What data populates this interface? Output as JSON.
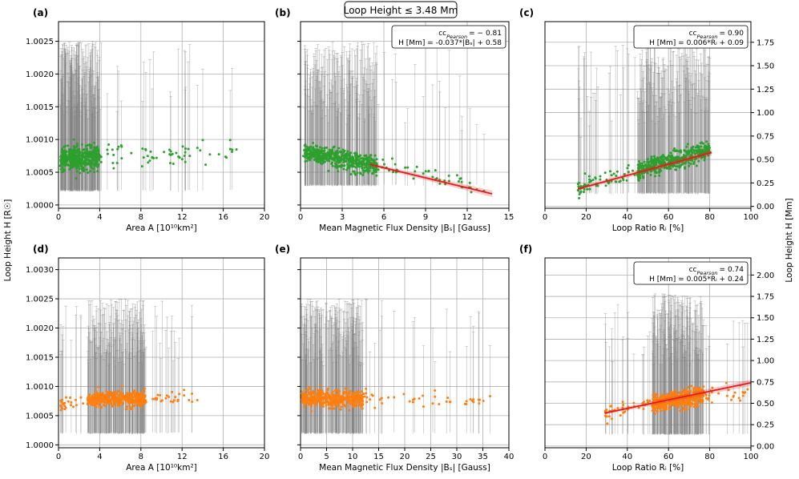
{
  "title": "Loop Height ≤ 3.48 Mm",
  "left_ylabel": "Loop Height H [R☉]",
  "right_ylabel": "Loop Height H [Mm]",
  "colors": {
    "green": "#2ca02c",
    "orange": "#ff7f0e",
    "fit": "#e41a1c",
    "error": "#7f7f7f"
  },
  "chart_data": [
    {
      "id": "a",
      "letter": "(a)",
      "type": "scatter",
      "color": "green",
      "xlabel": "Area A [10¹⁰km²]",
      "xlim": [
        0,
        20
      ],
      "xticks": [
        0,
        4,
        8,
        12,
        16,
        20
      ],
      "xtick_labels": [
        "0",
        "4",
        "8",
        "12",
        "16",
        "20"
      ],
      "ylim": [
        0.99995,
        1.0028
      ],
      "yticks": [
        1.0,
        1.0005,
        1.001,
        1.0015,
        1.002,
        1.0025
      ],
      "ytick_labels": [
        "1.0000",
        "1.0005",
        "1.0010",
        "1.0015",
        "1.0020",
        "1.0025"
      ],
      "scatter": {
        "x_range": [
          0.1,
          17.8
        ],
        "x_dense": [
          0.2,
          4.0
        ],
        "y_trend": [
          [
            0,
            1.00068
          ],
          [
            4,
            1.00075
          ],
          [
            18,
            1.00078
          ]
        ],
        "y_spread": 9e-05
      },
      "error_bars": {
        "low": 1.00022,
        "high_max": 1.0025
      }
    },
    {
      "id": "b",
      "letter": "(b)",
      "type": "scatter",
      "color": "green",
      "xlabel": "Mean Magnetic Flux Density |Bₛ| [Gauss]",
      "xlim": [
        0,
        15
      ],
      "xticks": [
        0,
        3,
        6,
        9,
        12,
        15
      ],
      "xtick_labels": [
        "0",
        "3",
        "6",
        "9",
        "12",
        "15"
      ],
      "ylim": [
        0.99995,
        1.0028
      ],
      "yticks": [
        1.0,
        1.0005,
        1.001,
        1.0015,
        1.002,
        1.0025
      ],
      "ytick_labels": [
        "",
        "",
        "",
        "",
        "",
        ""
      ],
      "scatter": {
        "x_range": [
          0.2,
          13.5
        ],
        "x_dense": [
          0.3,
          5.5
        ],
        "y_trend": [
          [
            0,
            1.00082
          ],
          [
            6,
            1.00058
          ],
          [
            13.5,
            1.00025
          ]
        ],
        "y_spread": 7e-05
      },
      "fit": {
        "x": [
          5.0,
          13.8
        ],
        "y": [
          1.00062,
          1.00017
        ]
      },
      "error_bars": {
        "low": 1.0003,
        "high_max": 1.0025
      },
      "annotation": {
        "cc_label": "cc",
        "cc_sub": "Pearson",
        "cc_value": "= − 0.81",
        "eq": "H [Mm] = -0.037*|Bₛ| + 0.58"
      }
    },
    {
      "id": "c",
      "letter": "(c)",
      "type": "scatter",
      "color": "green",
      "xlabel": "Loop Ratio Rᵢ [%]",
      "xlim": [
        0,
        100
      ],
      "xticks": [
        0,
        20,
        40,
        60,
        80,
        100
      ],
      "xtick_labels": [
        "0",
        "20",
        "40",
        "60",
        "80",
        "100"
      ],
      "ylim": [
        -0.02,
        1.97
      ],
      "yticks": [
        0.0,
        0.25,
        0.5,
        0.75,
        1.0,
        1.25,
        1.5,
        1.75
      ],
      "ytick_labels": [
        "0.00",
        "0.25",
        "0.50",
        "0.75",
        "1.00",
        "1.25",
        "1.50",
        "1.75"
      ],
      "scatter": {
        "x_range": [
          16,
          81
        ],
        "x_dense": [
          45,
          80
        ],
        "y_trend": [
          [
            16,
            0.2
          ],
          [
            80,
            0.6
          ]
        ],
        "y_spread": 0.05
      },
      "fit": {
        "x": [
          16,
          81
        ],
        "y": [
          0.186,
          0.576
        ]
      },
      "error_bars": {
        "low": 0.14,
        "high_max": 1.75
      },
      "annotation": {
        "cc_label": "cc",
        "cc_sub": "Pearson",
        "cc_value": "= 0.90",
        "eq": "H [Mm] = 0.006*Rᵢ + 0.09"
      }
    },
    {
      "id": "d",
      "letter": "(d)",
      "type": "scatter",
      "color": "orange",
      "xlabel": "Area A [10¹⁰km²]",
      "xlim": [
        0,
        20
      ],
      "xticks": [
        0,
        4,
        8,
        12,
        16,
        20
      ],
      "xtick_labels": [
        "0",
        "4",
        "8",
        "12",
        "16",
        "20"
      ],
      "ylim": [
        0.99995,
        1.0032
      ],
      "yticks": [
        1.0,
        1.0005,
        1.001,
        1.0015,
        1.002,
        1.0025,
        1.003
      ],
      "ytick_labels": [
        "1.0000",
        "1.0005",
        "1.0010",
        "1.0015",
        "1.0020",
        "1.0025",
        "1.0030"
      ],
      "scatter": {
        "x_range": [
          0.2,
          13.5
        ],
        "x_dense": [
          2.8,
          8.5
        ],
        "y_trend": [
          [
            0,
            1.0007
          ],
          [
            4,
            1.00078
          ],
          [
            13,
            1.00082
          ]
        ],
        "y_spread": 6e-05
      },
      "error_bars": {
        "low": 1.0002,
        "high_max": 1.0025
      }
    },
    {
      "id": "e",
      "letter": "(e)",
      "type": "scatter",
      "color": "orange",
      "xlabel": "Mean Magnetic Flux Density |Bₛ| [Gauss]",
      "xlim": [
        0,
        40
      ],
      "xticks": [
        0,
        5,
        10,
        15,
        20,
        25,
        30,
        35,
        40
      ],
      "xtick_labels": [
        "0",
        "5",
        "10",
        "15",
        "20",
        "25",
        "30",
        "35",
        "40"
      ],
      "ylim": [
        0.99995,
        1.0032
      ],
      "yticks": [
        1.0,
        1.0005,
        1.001,
        1.0015,
        1.002,
        1.0025,
        1.003
      ],
      "ytick_labels": [
        "",
        "",
        "",
        "",
        "",
        "",
        ""
      ],
      "scatter": {
        "x_range": [
          0.2,
          37
        ],
        "x_dense": [
          0.3,
          12
        ],
        "y_trend": [
          [
            0,
            1.0008
          ],
          [
            10,
            1.00078
          ],
          [
            37,
            1.00079
          ]
        ],
        "y_spread": 7e-05
      },
      "error_bars": {
        "low": 1.0002,
        "high_max": 1.0025
      }
    },
    {
      "id": "f",
      "letter": "(f)",
      "type": "scatter",
      "color": "orange",
      "xlabel": "Loop Ratio Rᵢ [%]",
      "xlim": [
        0,
        100
      ],
      "xticks": [
        0,
        20,
        40,
        60,
        80,
        100
      ],
      "xtick_labels": [
        "0",
        "20",
        "40",
        "60",
        "80",
        "100"
      ],
      "ylim": [
        -0.02,
        2.2
      ],
      "yticks": [
        0.0,
        0.25,
        0.5,
        0.75,
        1.0,
        1.25,
        1.5,
        1.75,
        2.0
      ],
      "ytick_labels": [
        "0.00",
        "0.25",
        "0.50",
        "0.75",
        "1.00",
        "1.25",
        "1.50",
        "1.75",
        "2.00"
      ],
      "scatter": {
        "x_range": [
          29,
          99
        ],
        "x_dense": [
          52,
          77
        ],
        "y_trend": [
          [
            29,
            0.38
          ],
          [
            77,
            0.6
          ]
        ],
        "y_spread": 0.05
      },
      "fit": {
        "x": [
          29,
          100
        ],
        "y": [
          0.385,
          0.74
        ]
      },
      "error_bars": {
        "low": 0.14,
        "high_max": 1.78
      },
      "annotation": {
        "cc_label": "cc",
        "cc_sub": "Pearson",
        "cc_value": "= 0.74",
        "eq": "H [Mm] = 0.005*Rᵢ + 0.24"
      }
    }
  ]
}
